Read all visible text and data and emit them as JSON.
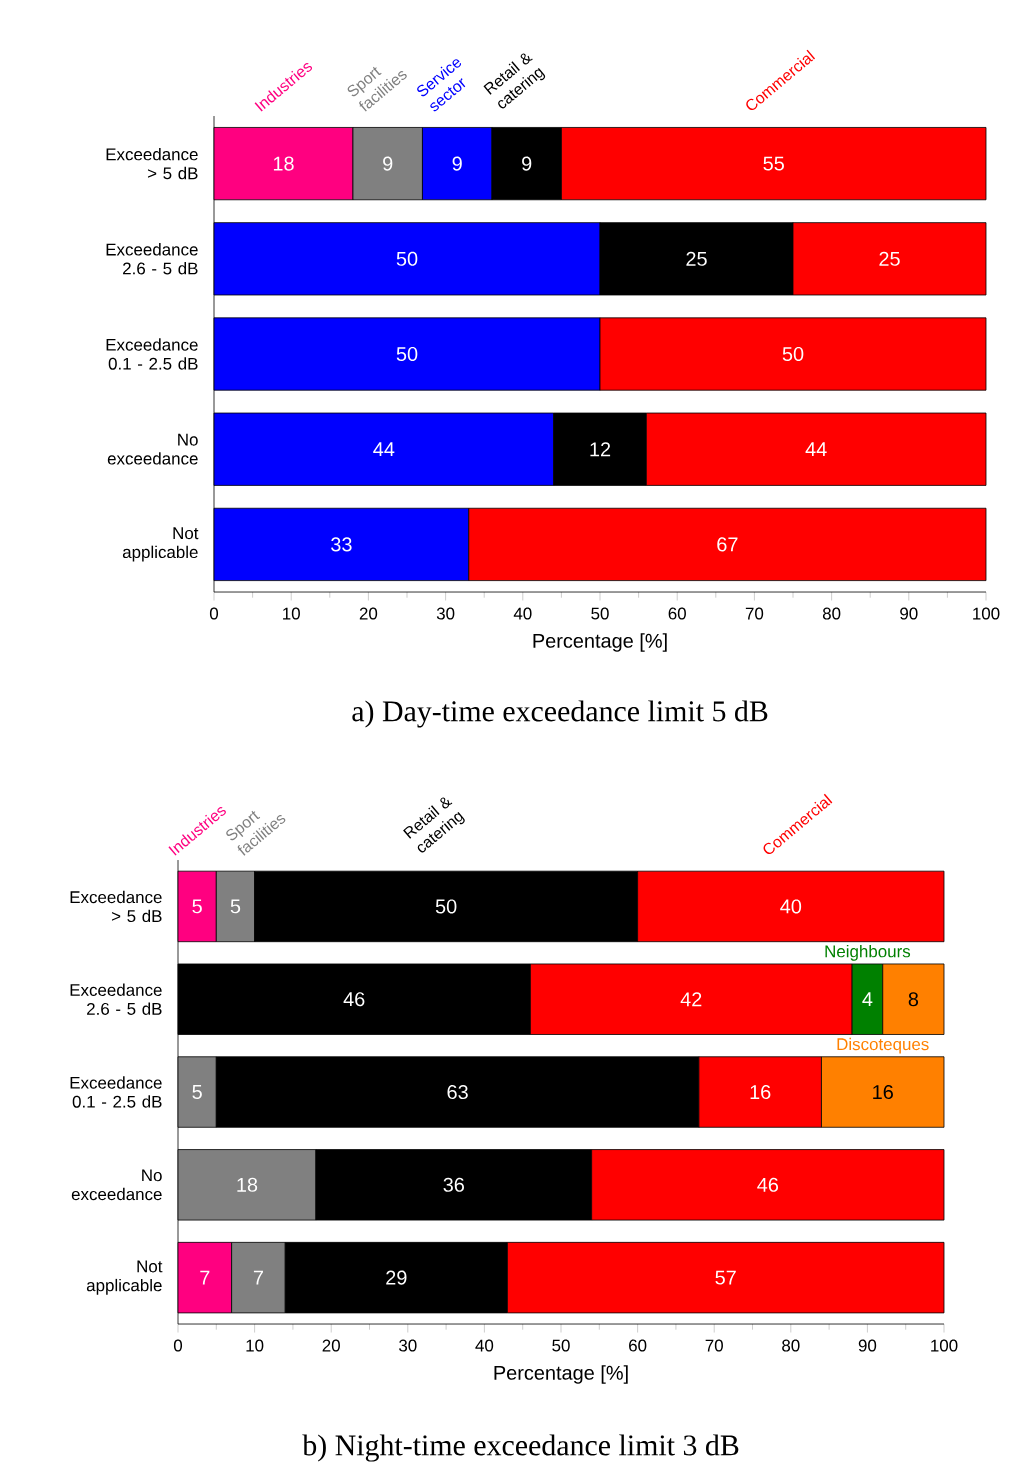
{
  "chart_data": [
    {
      "type": "bar",
      "orientation": "horizontal",
      "stacked": true,
      "title": "a) Day-time exceedance limit 5 dB",
      "xlabel": "Percentage [%]",
      "categories": [
        "Exceedance > 5 dB",
        "Exceedance 2.6 - 5 dB",
        "Exceedance 0.1 - 2.5 dB",
        "No exceedance",
        "Not applicable"
      ],
      "xlim": [
        0,
        100
      ],
      "xticks": [
        0,
        10,
        20,
        30,
        40,
        50,
        60,
        70,
        80,
        90,
        100
      ],
      "data_labels": true,
      "legend": "top",
      "series": [
        {
          "name": "Industries",
          "color": "#ff0080",
          "values": [
            18,
            null,
            null,
            null,
            null
          ]
        },
        {
          "name": "Sport facilities",
          "color": "#808080",
          "values": [
            9,
            null,
            null,
            null,
            null
          ]
        },
        {
          "name": "Service sector",
          "color": "#0000ff",
          "values": [
            9,
            50,
            50,
            44,
            33
          ]
        },
        {
          "name": "Retail & catering",
          "color": "#000000",
          "values": [
            9,
            25,
            null,
            12,
            null
          ]
        },
        {
          "name": "Commercial",
          "color": "#ff0000",
          "values": [
            55,
            25,
            50,
            44,
            67
          ]
        }
      ]
    },
    {
      "type": "bar",
      "orientation": "horizontal",
      "stacked": true,
      "title": "b) Night-time exceedance limit 3 dB",
      "xlabel": "Percentage [%]",
      "categories": [
        "Exceedance > 5 dB",
        "Exceedance 2.6 - 5 dB",
        "Exceedance 0.1 - 2.5 dB",
        "No exceedance",
        "Not applicable"
      ],
      "xlim": [
        0,
        100
      ],
      "xticks": [
        0,
        10,
        20,
        30,
        40,
        50,
        60,
        70,
        80,
        90,
        100
      ],
      "data_labels": true,
      "legend": "top",
      "series": [
        {
          "name": "Industries",
          "color": "#ff0080",
          "values": [
            5,
            null,
            null,
            null,
            7
          ]
        },
        {
          "name": "Sport facilities",
          "color": "#808080",
          "values": [
            5,
            null,
            5,
            18,
            7
          ]
        },
        {
          "name": "Retail & catering",
          "color": "#000000",
          "values": [
            50,
            46,
            63,
            36,
            29
          ]
        },
        {
          "name": "Commercial",
          "color": "#ff0000",
          "values": [
            40,
            42,
            16,
            46,
            57
          ]
        },
        {
          "name": "Neighbours",
          "color": "#008000",
          "values": [
            null,
            4,
            null,
            null,
            null
          ]
        },
        {
          "name": "Discoteques",
          "color": "#ff8000",
          "values": [
            null,
            8,
            16,
            null,
            null
          ]
        }
      ]
    }
  ]
}
